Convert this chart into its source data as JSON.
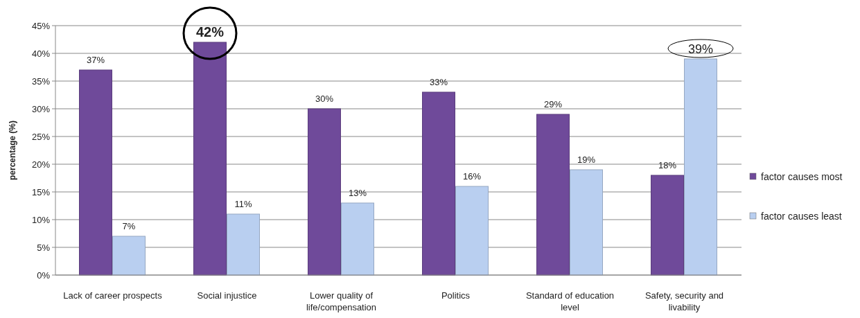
{
  "chart_data": {
    "type": "bar",
    "ylabel": "percentage (%)",
    "categories": [
      "Lack of career prospects",
      "Social injustice",
      "Lower quality of life/compensation",
      "Politics",
      "Standard of education level",
      "Safety, security and livability"
    ],
    "series": [
      {
        "name": "factor causes most",
        "color": "#6f4a9a",
        "values": [
          37,
          42,
          30,
          33,
          29,
          18
        ],
        "value_labels": [
          "37%",
          "42%",
          "30%",
          "33%",
          "29%",
          "18%"
        ]
      },
      {
        "name": "factor causes least",
        "color": "#b9cff0",
        "values": [
          7,
          11,
          13,
          16,
          19,
          39
        ],
        "value_labels": [
          "7%",
          "11%",
          "13%",
          "16%",
          "19%",
          "39%"
        ]
      }
    ],
    "ylim": [
      0,
      45
    ],
    "yticks": [
      {
        "value": 0,
        "label": "0%"
      },
      {
        "value": 5,
        "label": "5%"
      },
      {
        "value": 10,
        "label": "10%"
      },
      {
        "value": 15,
        "label": "15%"
      },
      {
        "value": 20,
        "label": "20%"
      },
      {
        "value": 25,
        "label": "25%"
      },
      {
        "value": 30,
        "label": "30%"
      },
      {
        "value": 35,
        "label": "35%"
      },
      {
        "value": 40,
        "label": "40%"
      },
      {
        "value": 45,
        "label": "45%"
      }
    ],
    "grid": "y",
    "legend": "right"
  }
}
